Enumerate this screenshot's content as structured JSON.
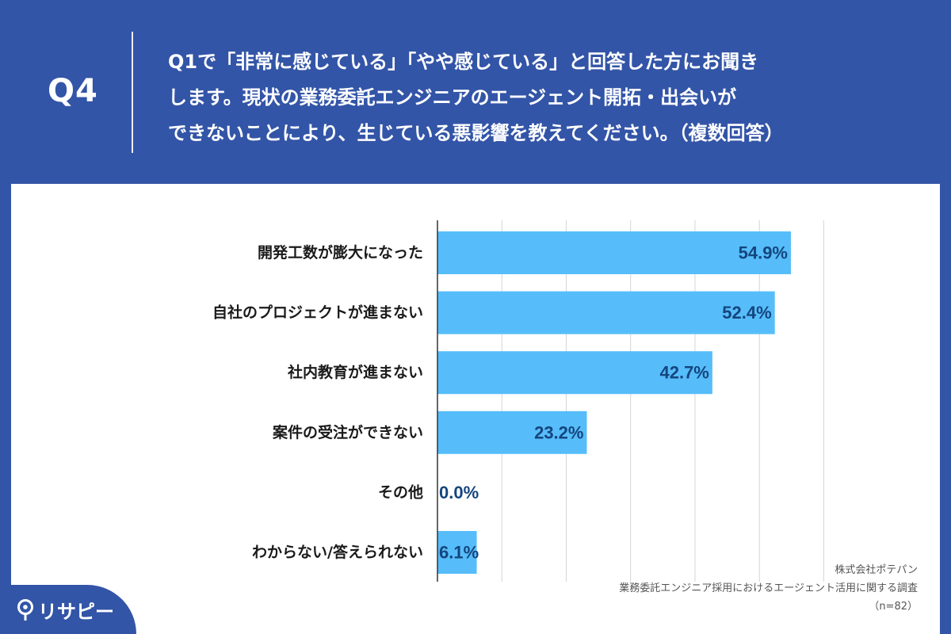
{
  "header": {
    "qnum": "Q4",
    "question": "Q1で「非常に感じている」「やや感じている」と回答した方にお聞き\nします。現状の業務委託エンジニアのエージェント開拓・出会いが\nできないことにより、生じている悪影響を教えてください。（複数回答）"
  },
  "chart_data": {
    "type": "bar",
    "orientation": "horizontal",
    "categories": [
      "開発工数が膨大になった",
      "自社のプロジェクトが進まない",
      "社内教育が進まない",
      "案件の受注ができない",
      "その他",
      "わからない/答えられない"
    ],
    "values": [
      54.9,
      52.4,
      42.7,
      23.2,
      0.0,
      6.1
    ],
    "value_labels": [
      "54.9%",
      "52.4%",
      "42.7%",
      "23.2%",
      "0.0%",
      "6.1%"
    ],
    "xlim": [
      0,
      60
    ],
    "grid": true,
    "bar_color": "#56bdfa"
  },
  "credit": {
    "company": "株式会社ポテパン",
    "survey": "業務委託エンジニア採用におけるエージェント活用に関する調査",
    "n": "（n=82）"
  },
  "logo": {
    "text": "リサピー"
  }
}
